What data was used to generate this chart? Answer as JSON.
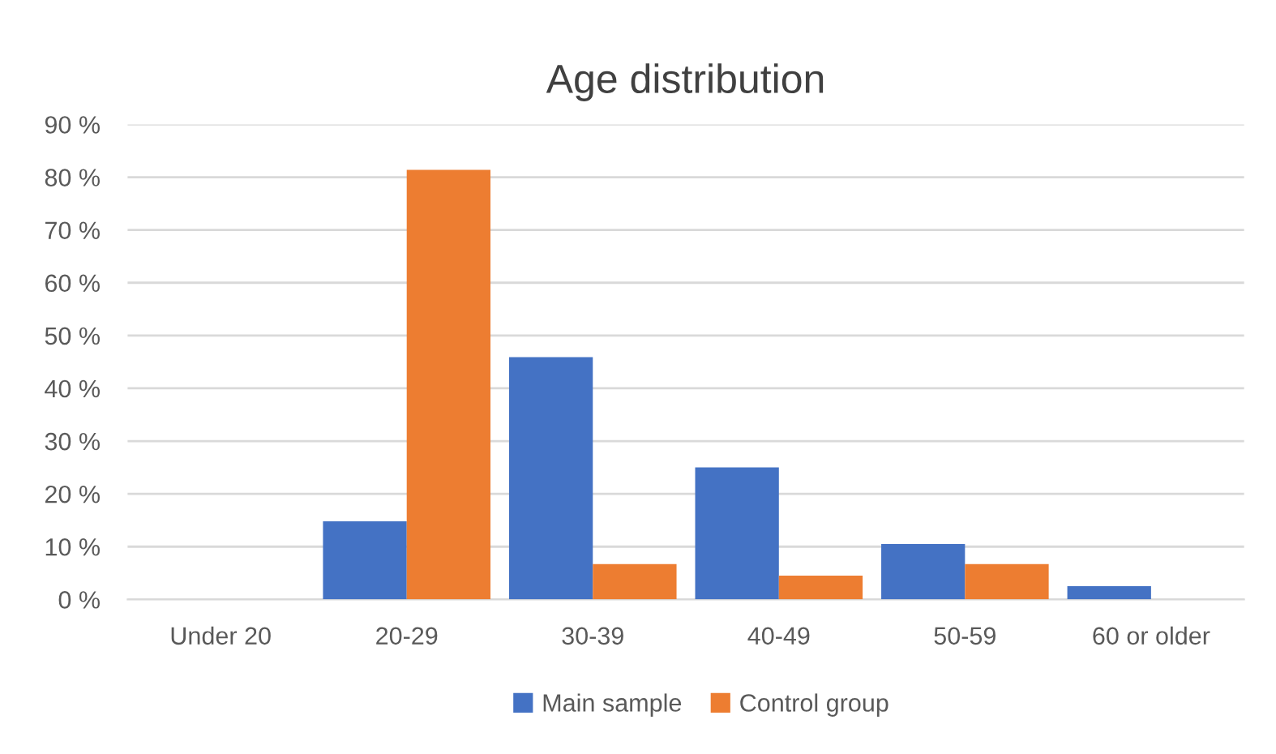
{
  "chart_data": {
    "type": "bar",
    "title": "Age distribution",
    "categories": [
      "Under 20",
      "20-29",
      "30-39",
      "40-49",
      "50-59",
      "60 or older"
    ],
    "series": [
      {
        "name": "Main sample",
        "color": "#4472c4",
        "values": [
          0,
          14.8,
          45.9,
          25,
          10.5,
          2.5
        ]
      },
      {
        "name": "Control group",
        "color": "#ed7d31",
        "values": [
          0,
          81.4,
          6.7,
          4.5,
          6.7,
          0
        ]
      }
    ],
    "ylim": [
      0,
      90
    ],
    "yticks": [
      {
        "value": 0,
        "label": "0 %"
      },
      {
        "value": 10,
        "label": "10 %"
      },
      {
        "value": 20,
        "label": "20 %"
      },
      {
        "value": 30,
        "label": "30 %"
      },
      {
        "value": 40,
        "label": "40 %"
      },
      {
        "value": 50,
        "label": "50 %"
      },
      {
        "value": 60,
        "label": "60 %"
      },
      {
        "value": 70,
        "label": "70 %"
      },
      {
        "value": 80,
        "label": "80 %"
      },
      {
        "value": 90,
        "label": "90 %"
      }
    ],
    "grid": "y",
    "legend": "bottom"
  }
}
